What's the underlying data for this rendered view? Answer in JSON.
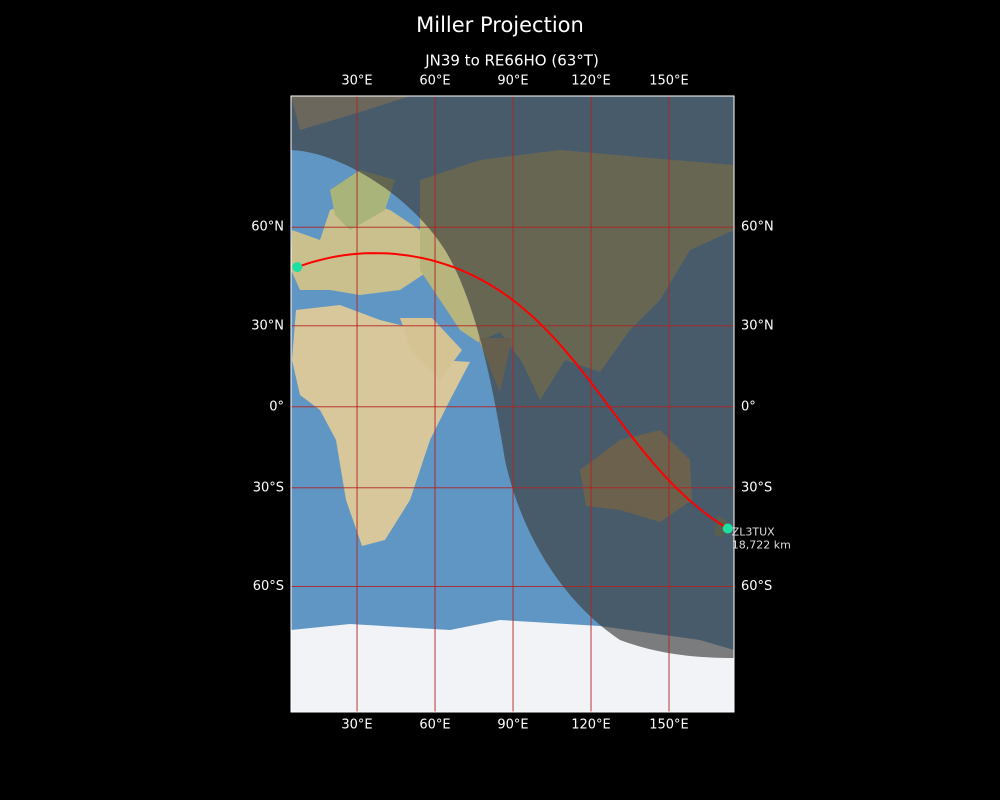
{
  "title": "Miller Projection",
  "subtitle": "JN39 to RE66HO (63°T)",
  "map": {
    "projection": "miller",
    "lon_range": [
      4.6,
      175
    ],
    "lat_range": [
      -84.7,
      85.5
    ],
    "lon_ticks": [
      {
        "value": 30,
        "label": "30°E"
      },
      {
        "value": 60,
        "label": "60°E"
      },
      {
        "value": 90,
        "label": "90°E"
      },
      {
        "value": 120,
        "label": "120°E"
      },
      {
        "value": 150,
        "label": "150°E"
      }
    ],
    "lat_ticks": [
      {
        "value": 60,
        "label": "60°N"
      },
      {
        "value": 30,
        "label": "30°N"
      },
      {
        "value": 0,
        "label": "0°"
      },
      {
        "value": -30,
        "label": "30°S"
      },
      {
        "value": -60,
        "label": "60°S"
      }
    ],
    "grid_color": "#b22222",
    "path_color": "#ff0000",
    "marker_color": "#1de0a0",
    "from": {
      "lon": 7,
      "lat": 49
    },
    "to": {
      "lon": 172.6,
      "lat": -43.5,
      "label": "ZL3TUX",
      "distance": "18,722 km"
    }
  }
}
